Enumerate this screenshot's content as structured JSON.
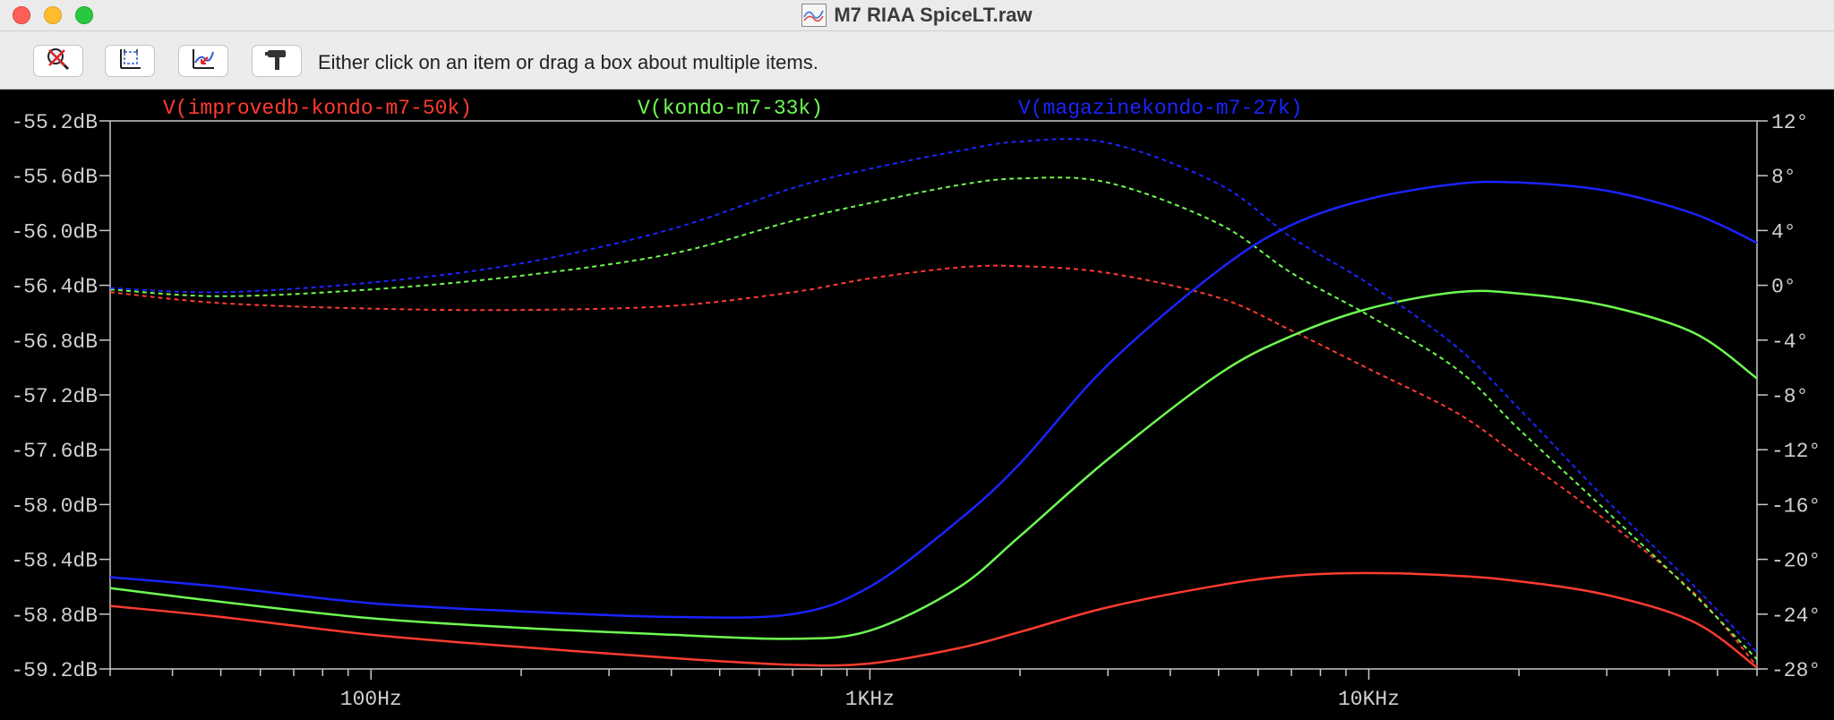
{
  "window": {
    "title": "M7 RIAA SpiceLT.raw"
  },
  "toolbar": {
    "buttons": [
      {
        "name": "zoom-cancel-button",
        "icon": "zoom-cancel-icon"
      },
      {
        "name": "autorange-button",
        "icon": "autorange-icon"
      },
      {
        "name": "delete-trace-button",
        "icon": "delete-trace-icon"
      },
      {
        "name": "settings-button",
        "icon": "hammer-icon"
      }
    ],
    "hint": "Either click on an item or drag a box about multiple items."
  },
  "chart_data": {
    "type": "line",
    "xscale": "log",
    "xlim": [
      30,
      60000
    ],
    "xlabel": "",
    "ylabel": "",
    "y_left": {
      "unit": "dB",
      "lim": [
        -59.2,
        -55.2
      ],
      "ticks": [
        "-55.2dB",
        "-55.6dB",
        "-56.0dB",
        "-56.4dB",
        "-56.8dB",
        "-57.2dB",
        "-57.6dB",
        "-58.0dB",
        "-58.4dB",
        "-58.8dB",
        "-59.2dB"
      ]
    },
    "y_right": {
      "unit": "°",
      "lim": [
        -28,
        12
      ],
      "ticks": [
        "12°",
        "8°",
        "4°",
        "0°",
        "-4°",
        "-8°",
        "-12°",
        "-16°",
        "-20°",
        "-24°",
        "-28°"
      ]
    },
    "x_ticks": [
      {
        "value": 100,
        "label": "100Hz"
      },
      {
        "value": 1000,
        "label": "1KHz"
      },
      {
        "value": 10000,
        "label": "10KHz"
      }
    ],
    "grid": false,
    "background": "#000000",
    "axis_color": "#c8c8c8",
    "x": [
      30,
      50,
      100,
      200,
      400,
      700,
      1000,
      1500,
      2000,
      3000,
      5000,
      7000,
      10000,
      15000,
      20000,
      30000,
      45000,
      60000
    ],
    "series": [
      {
        "name": "V(improvedb-kondo-m7-50k)",
        "color": "#ff3b30",
        "magnitude_db": [
          -58.74,
          -58.82,
          -58.95,
          -59.04,
          -59.12,
          -59.17,
          -59.16,
          -59.05,
          -58.93,
          -58.75,
          -58.59,
          -58.52,
          -58.5,
          -58.52,
          -58.56,
          -58.66,
          -58.86,
          -59.19
        ],
        "phase_deg": [
          -0.5,
          -1.3,
          -1.7,
          -1.8,
          -1.5,
          -0.5,
          0.5,
          1.3,
          1.4,
          0.9,
          -0.9,
          -3.3,
          -6.1,
          -9.3,
          -12.5,
          -17.2,
          -22.5,
          -27.8
        ]
      },
      {
        "name": "V(kondo-m7-33k)",
        "color": "#6efb52",
        "magnitude_db": [
          -58.61,
          -58.71,
          -58.83,
          -58.9,
          -58.95,
          -58.98,
          -58.92,
          -58.61,
          -58.23,
          -57.67,
          -57.05,
          -56.77,
          -56.57,
          -56.45,
          -56.46,
          -56.55,
          -56.75,
          -57.08
        ],
        "phase_deg": [
          -0.3,
          -0.8,
          -0.3,
          0.7,
          2.3,
          4.7,
          6.0,
          7.3,
          7.8,
          7.5,
          4.5,
          0.9,
          -2.2,
          -6.1,
          -10.5,
          -16.5,
          -22.6,
          -27.3
        ]
      },
      {
        "name": "V(magazinekondo-m7-27k)",
        "color": "#1a24ff",
        "magnitude_db": [
          -58.53,
          -58.6,
          -58.72,
          -58.78,
          -58.82,
          -58.8,
          -58.6,
          -58.12,
          -57.7,
          -56.98,
          -56.29,
          -55.96,
          -55.77,
          -55.66,
          -55.65,
          -55.71,
          -55.88,
          -56.09
        ],
        "phase_deg": [
          -0.2,
          -0.5,
          0.2,
          1.6,
          4.1,
          7.1,
          8.5,
          9.8,
          10.5,
          10.4,
          7.4,
          3.5,
          0.1,
          -4.5,
          -9.0,
          -15.7,
          -22.0,
          -26.8
        ]
      }
    ]
  }
}
